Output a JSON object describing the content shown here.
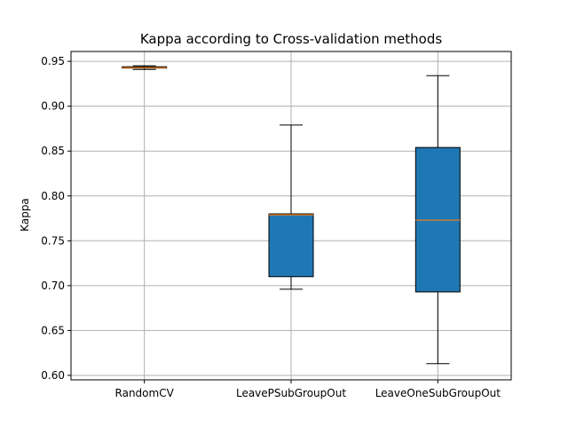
{
  "chart_data": {
    "type": "box",
    "title": "Kappa according to Cross-validation methods",
    "xlabel": "",
    "ylabel": "Kappa",
    "ylim": [
      0.595,
      0.961
    ],
    "yticks": [
      0.6,
      0.65,
      0.7,
      0.75,
      0.8,
      0.85,
      0.9,
      0.95
    ],
    "ytick_labels": [
      "0.60",
      "0.65",
      "0.70",
      "0.75",
      "0.80",
      "0.85",
      "0.90",
      "0.95"
    ],
    "grid": true,
    "categories": [
      "RandomCV",
      "LeavePSubGroupOut",
      "LeaveOneSubGroupOut"
    ],
    "boxes": [
      {
        "whisker_low": 0.941,
        "q1": 0.9425,
        "median": 0.943,
        "q3": 0.944,
        "whisker_high": 0.945
      },
      {
        "whisker_low": 0.696,
        "q1": 0.71,
        "median": 0.779,
        "q3": 0.78,
        "whisker_high": 0.879
      },
      {
        "whisker_low": 0.613,
        "q1": 0.693,
        "median": 0.773,
        "q3": 0.854,
        "whisker_high": 0.934
      }
    ],
    "colors": {
      "box_fill": "#1f77b4",
      "median": "#ff7f0e",
      "grid": "#b0b0b0",
      "line": "#000000"
    }
  }
}
